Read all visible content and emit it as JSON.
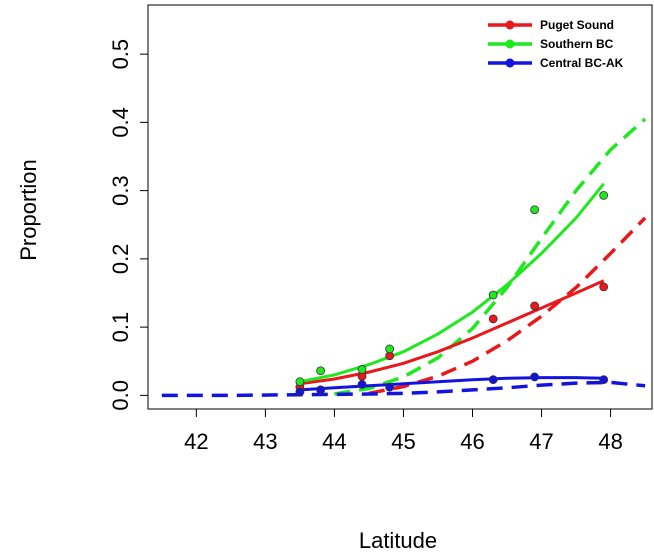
{
  "chart_data": {
    "type": "scatter",
    "xlabel": "Latitude",
    "ylabel": "Proportion",
    "xlim": [
      41.3,
      48.6
    ],
    "ylim": [
      -0.02,
      0.572
    ],
    "x_ticks": [
      42,
      43,
      44,
      45,
      46,
      47,
      48
    ],
    "y_ticks": [
      0.0,
      0.1,
      0.2,
      0.3,
      0.4,
      0.5
    ],
    "x_tick_labels": [
      "42",
      "43",
      "44",
      "45",
      "46",
      "47",
      "48"
    ],
    "y_tick_labels": [
      "0.0",
      "0.1",
      "0.2",
      "0.3",
      "0.4",
      "0.5"
    ],
    "grid": false,
    "legend_position": "top-right",
    "series": [
      {
        "name": "Puget Sound",
        "color": "#e8181c",
        "points": {
          "x": [
            43.5,
            43.8,
            44.4,
            44.8,
            46.3,
            46.9,
            47.9
          ],
          "y": [
            0.012,
            0.008,
            0.028,
            0.058,
            0.112,
            0.131,
            0.159
          ]
        },
        "fit_solid": {
          "x": [
            43.5,
            44.0,
            44.5,
            45.0,
            45.5,
            46.0,
            46.5,
            47.0,
            47.5,
            47.9
          ],
          "y": [
            0.017,
            0.024,
            0.034,
            0.047,
            0.064,
            0.084,
            0.106,
            0.128,
            0.15,
            0.168
          ]
        },
        "fit_dashed": {
          "x": [
            44.5,
            45.0,
            45.5,
            46.0,
            46.5,
            47.0,
            47.5,
            48.0,
            48.5
          ],
          "y": [
            0.003,
            0.013,
            0.028,
            0.05,
            0.08,
            0.116,
            0.158,
            0.208,
            0.26
          ]
        }
      },
      {
        "name": "Southern BC",
        "color": "#1fe81f",
        "points": {
          "x": [
            43.5,
            43.8,
            44.4,
            44.8,
            46.3,
            46.9,
            47.9
          ],
          "y": [
            0.02,
            0.036,
            0.038,
            0.068,
            0.147,
            0.272,
            0.293
          ]
        },
        "fit_solid": {
          "x": [
            43.5,
            44.0,
            44.5,
            45.0,
            45.5,
            46.0,
            46.5,
            47.0,
            47.5,
            47.9
          ],
          "y": [
            0.02,
            0.03,
            0.045,
            0.064,
            0.09,
            0.122,
            0.162,
            0.208,
            0.26,
            0.31
          ]
        },
        "fit_dashed": {
          "x": [
            44.0,
            44.5,
            45.0,
            45.5,
            46.0,
            46.5,
            47.0,
            47.5,
            48.0,
            48.5
          ],
          "y": [
            0.002,
            0.01,
            0.027,
            0.055,
            0.098,
            0.158,
            0.23,
            0.3,
            0.36,
            0.405
          ]
        }
      },
      {
        "name": "Central BC-AK",
        "color": "#1313e0",
        "points": {
          "x": [
            43.5,
            43.8,
            44.4,
            44.8,
            46.3,
            46.9,
            47.9
          ],
          "y": [
            0.005,
            0.008,
            0.016,
            0.012,
            0.023,
            0.027,
            0.023
          ]
        },
        "fit_solid": {
          "x": [
            43.5,
            44.0,
            44.5,
            45.0,
            45.5,
            46.0,
            46.5,
            47.0,
            47.5,
            47.9
          ],
          "y": [
            0.008,
            0.011,
            0.014,
            0.017,
            0.02,
            0.023,
            0.025,
            0.026,
            0.026,
            0.025
          ]
        },
        "fit_dashed": {
          "x": [
            41.5,
            42.5,
            43.5,
            44.5,
            45.0,
            45.5,
            46.0,
            46.5,
            47.0,
            47.5,
            48.0,
            48.5
          ],
          "y": [
            0.0,
            0.0,
            0.001,
            0.002,
            0.003,
            0.005,
            0.008,
            0.011,
            0.015,
            0.018,
            0.019,
            0.014
          ]
        }
      }
    ]
  }
}
